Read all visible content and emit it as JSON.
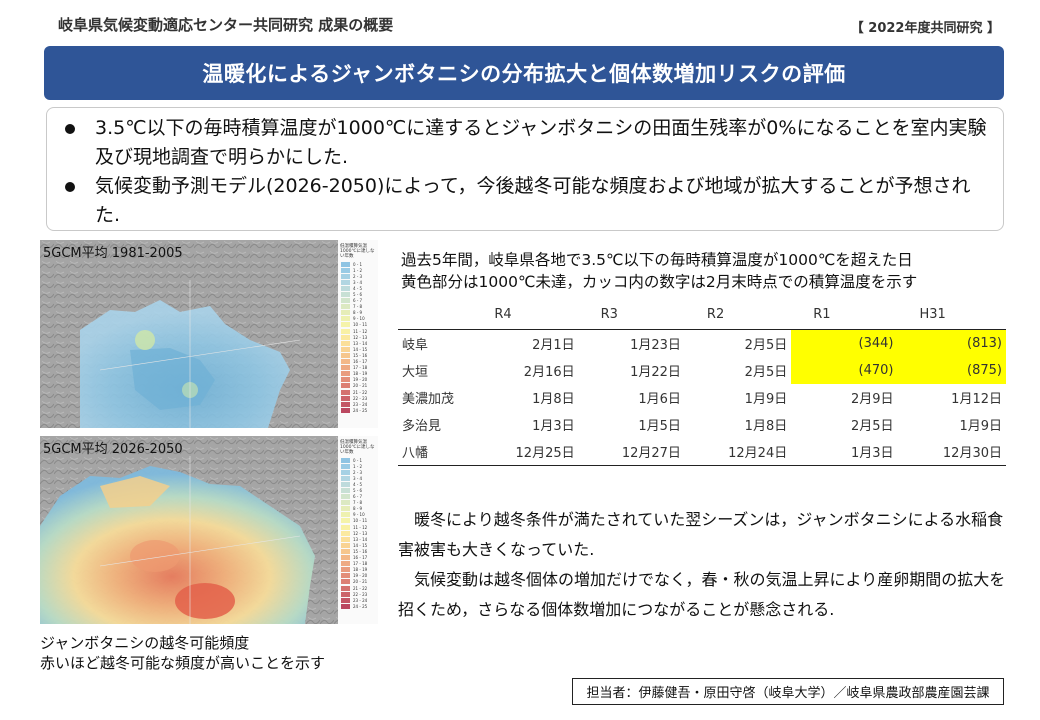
{
  "header": {
    "title": "岐阜県気候変動適応センター共同研究  成果の概要",
    "tag": "【 2022年度共同研究 】"
  },
  "banner": {
    "title": "温暖化によるジャンボタニシの分布拡大と個体数増加リスクの評価"
  },
  "summary": {
    "bullets": [
      "3.5℃以下の毎時積算温度が1000℃に達するとジャンボタニシの田面生残率が0%になることを室内実験及び現地調査で明らかにした.",
      "気候変動予測モデル(2026-2050)によって，今後越冬可能な頻度および地域が拡大することが予想された."
    ]
  },
  "maps": [
    {
      "title": "5GCM平均 1981-2005"
    },
    {
      "title": "5GCM平均 2026-2050"
    }
  ],
  "legend": {
    "title": "低温積算気温1000℃に達しない年数",
    "labels": [
      "0 - 1",
      "1 - 2",
      "2 - 3",
      "3 - 4",
      "4 - 5",
      "5 - 6",
      "6 - 7",
      "7 - 8",
      "8 - 9",
      "9 - 10",
      "10 - 11",
      "11 - 12",
      "12 - 13",
      "13 - 14",
      "14 - 15",
      "15 - 16",
      "16 - 17",
      "17 - 18",
      "18 - 19",
      "19 - 20",
      "20 - 21",
      "21 - 22",
      "22 - 23",
      "23 - 24",
      "24 - 25"
    ]
  },
  "map_caption": {
    "line1": "ジャンボタニシの越冬可能頻度",
    "line2": "赤いほど越冬可能な頻度が高いことを示す"
  },
  "table": {
    "heading_line1": "過去5年間，岐阜県各地で3.5℃以下の毎時積算温度が1000℃を超えた日",
    "heading_line2": "黄色部分は1000℃未達，カッコ内の数字は2月末時点での積算温度を示す",
    "columns": [
      "",
      "R4",
      "R3",
      "R2",
      "R1",
      "H31"
    ],
    "rows": [
      {
        "place": "岐阜",
        "cells": [
          "2月1日",
          "1月23日",
          "2月5日",
          "(344)",
          "(813)"
        ],
        "highlight": [
          false,
          false,
          false,
          true,
          true
        ]
      },
      {
        "place": "大垣",
        "cells": [
          "2月16日",
          "1月22日",
          "2月5日",
          "(470)",
          "(875)"
        ],
        "highlight": [
          false,
          false,
          false,
          true,
          true
        ]
      },
      {
        "place": "美濃加茂",
        "cells": [
          "1月8日",
          "1月6日",
          "1月9日",
          "2月9日",
          "1月12日"
        ],
        "highlight": [
          false,
          false,
          false,
          false,
          false
        ]
      },
      {
        "place": "多治見",
        "cells": [
          "1月3日",
          "1月5日",
          "1月8日",
          "2月5日",
          "1月9日"
        ],
        "highlight": [
          false,
          false,
          false,
          false,
          false
        ]
      },
      {
        "place": "八幡",
        "cells": [
          "12月25日",
          "12月27日",
          "12月24日",
          "1月3日",
          "12月30日"
        ],
        "highlight": [
          false,
          false,
          false,
          false,
          false
        ]
      }
    ]
  },
  "body": {
    "para1": "暖冬により越冬条件が満たされていた翌シーズンは，ジャンボタニシによる水稲食害被害も大きくなっていた.",
    "para2": "気候変動は越冬個体の増加だけでなく，春・秋の気温上昇により産卵期間の拡大を招くため，さらなる個体数増加につながることが懸念される."
  },
  "credit": {
    "text": "担当者：伊藤健吾・原田守啓（岐阜大学）／岐阜県農政部農産園芸課"
  },
  "colors": {
    "banner": "#2f5597",
    "highlight": "#ffff00"
  }
}
